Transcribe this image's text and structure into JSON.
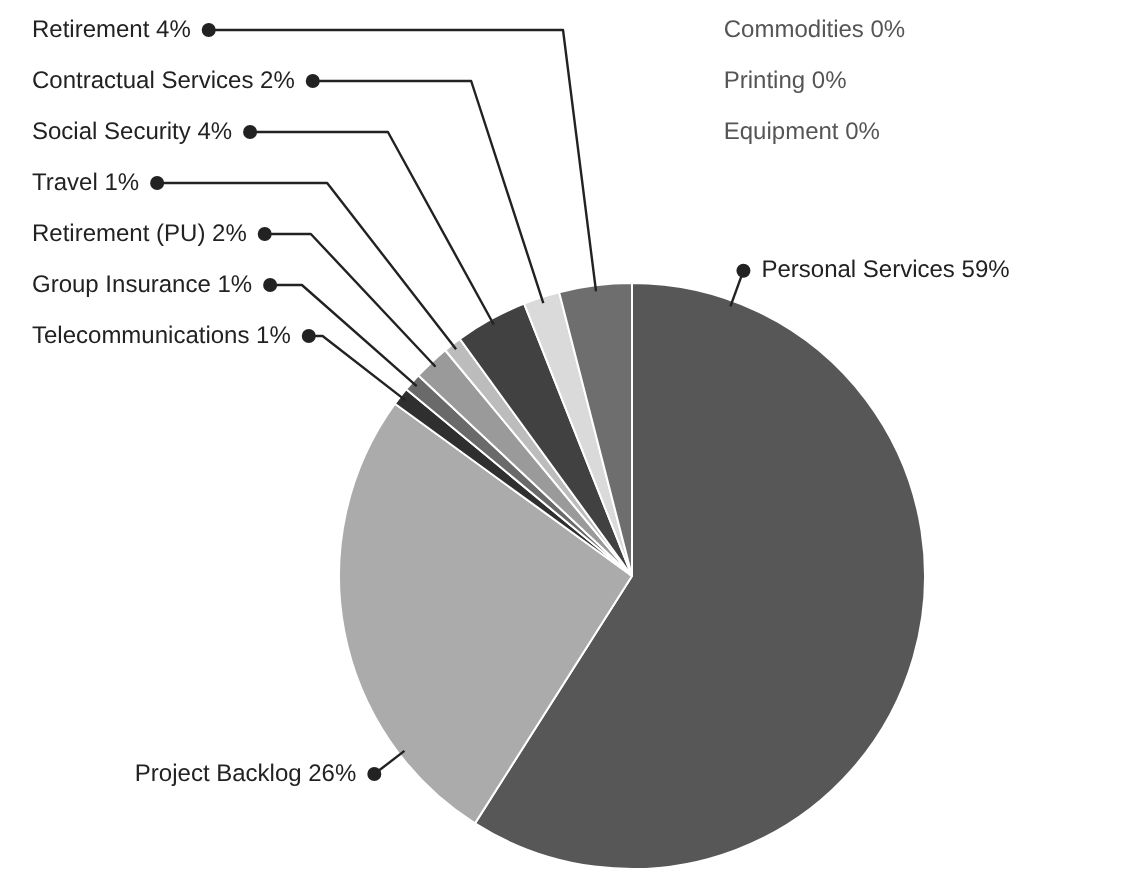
{
  "chart_data": {
    "type": "pie",
    "categories": [
      "Personal Services",
      "Project Backlog",
      "Telecommunications",
      "Group Insurance",
      "Retirement (PU)",
      "Travel",
      "Social Security",
      "Contractual Services",
      "Retirement",
      "Commodities",
      "Printing",
      "Equipment"
    ],
    "values": [
      59,
      26,
      1,
      1,
      2,
      1,
      4,
      2,
      4,
      0,
      0,
      0
    ],
    "value_labels": [
      "59%",
      "26%",
      "1%",
      "1%",
      "2%",
      "1%",
      "4%",
      "2%",
      "4%",
      "0%",
      "0%",
      "0%"
    ],
    "colors": [
      "#575757",
      "#ababab",
      "#2f2f2f",
      "#6a6a6a",
      "#9a9a9a",
      "#bcbcbc",
      "#414141",
      "#dadada",
      "#6e6e6e",
      "#8a8a8a",
      "#8a8a8a",
      "#8a8a8a"
    ]
  }
}
